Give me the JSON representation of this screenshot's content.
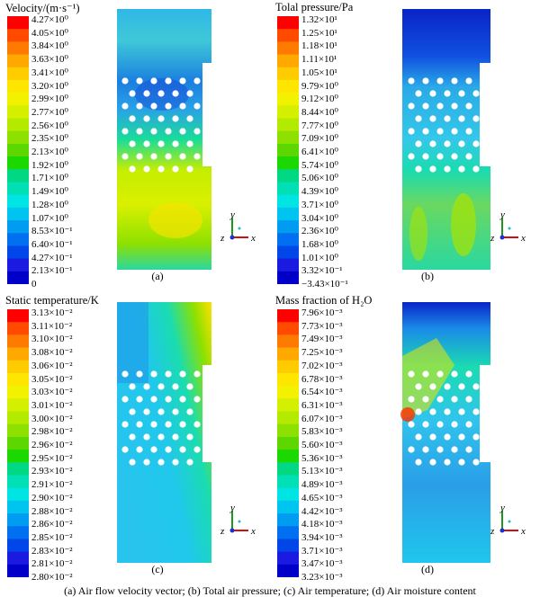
{
  "panels": [
    {
      "title": "Velocity/(m·s⁻¹)",
      "label": "(a)",
      "ticks": [
        "4.27×10⁰",
        "4.05×10⁰",
        "3.84×10⁰",
        "3.63×10⁰",
        "3.41×10⁰",
        "3.20×10⁰",
        "2.99×10⁰",
        "2.77×10⁰",
        "2.56×10⁰",
        "2.35×10⁰",
        "2.13×10⁰",
        "1.92×10⁰",
        "1.71×10⁰",
        "1.49×10⁰",
        "1.28×10⁰",
        "1.07×10⁰",
        "8.53×10⁻¹",
        "6.40×10⁻¹",
        "4.27×10⁻¹",
        "2.13×10⁻¹",
        "0"
      ]
    },
    {
      "title": "Tolal pressure/Pa",
      "label": "(b)",
      "ticks": [
        "1.32×10¹",
        "1.25×10¹",
        "1.18×10¹",
        "1.11×10¹",
        "1.05×10¹",
        "9.79×10⁰",
        "9.12×10⁰",
        "8.44×10⁰",
        "7.77×10⁰",
        "7.09×10⁰",
        "6.41×10⁰",
        "5.74×10⁰",
        "5.06×10⁰",
        "4.39×10⁰",
        "3.71×10⁰",
        "3.04×10⁰",
        "2.36×10⁰",
        "1.68×10⁰",
        "1.01×10⁰",
        "3.32×10⁻¹",
        "−3.43×10⁻¹"
      ]
    },
    {
      "title": "Static temperature/K",
      "label": "(c)",
      "ticks": [
        "3.13×10⁻²",
        "3.11×10⁻²",
        "3.10×10⁻²",
        "3.08×10⁻²",
        "3.06×10⁻²",
        "3.05×10⁻²",
        "3.03×10⁻²",
        "3.01×10⁻²",
        "3.00×10⁻²",
        "2.98×10⁻²",
        "2.96×10⁻²",
        "2.95×10⁻²",
        "2.93×10⁻²",
        "2.91×10⁻²",
        "2.90×10⁻²",
        "2.88×10⁻²",
        "2.86×10⁻²",
        "2.85×10⁻²",
        "2.83×10⁻²",
        "2.81×10⁻²",
        "2.80×10⁻²"
      ]
    },
    {
      "title": "Mass fraction of H₂O",
      "label": "(d)",
      "ticks": [
        "7.96×10⁻³",
        "7.73×10⁻³",
        "7.49×10⁻³",
        "7.25×10⁻³",
        "7.02×10⁻³",
        "6.78×10⁻³",
        "6.54×10⁻³",
        "6.31×10⁻³",
        "6.07×10⁻³",
        "5.83×10⁻³",
        "5.60×10⁻³",
        "5.36×10⁻³",
        "5.13×10⁻³",
        "4.89×10⁻³",
        "4.65×10⁻³",
        "4.42×10⁻³",
        "4.18×10⁻³",
        "3.94×10⁻³",
        "3.71×10⁻³",
        "3.47×10⁻³",
        "3.23×10⁻³"
      ]
    }
  ],
  "colorbar": [
    "#ff0000",
    "#ff4a00",
    "#ff7a00",
    "#ffa800",
    "#ffcc00",
    "#ffe600",
    "#f2f200",
    "#d4f000",
    "#b4ea00",
    "#8ee000",
    "#5cd800",
    "#1ad800",
    "#00d884",
    "#00e0b4",
    "#00e4e4",
    "#00c4f0",
    "#009cf2",
    "#0070f0",
    "#0046e8",
    "#1a1ae0",
    "#0000c8"
  ],
  "axis_labels": {
    "y": "y",
    "z": "z",
    "x": "x"
  },
  "caption": "(a)  Air flow velocity vector;  (b) Total air pressure;  (c) Air temperature;  (d) Air moisture content"
}
